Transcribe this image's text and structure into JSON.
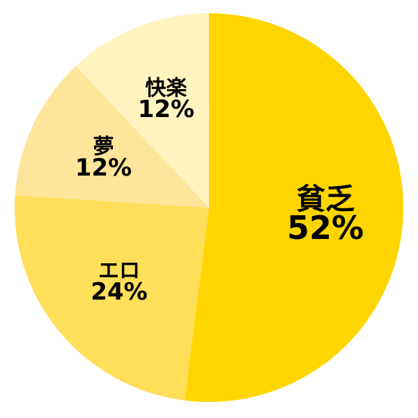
{
  "page": {
    "background_color": "#ffffff"
  },
  "chart_data": {
    "type": "pie",
    "title": "",
    "legend_position": "none",
    "labels_position": "inside",
    "start_angle_deg": 0,
    "direction": "clockwise",
    "text_color": "#000000",
    "total": 100,
    "slices": [
      {
        "label": "貧乏",
        "value": 52,
        "pct_label": "52%",
        "color": "#ffd500",
        "name_font_px": 42,
        "pct_font_px": 46
      },
      {
        "label": "エロ",
        "value": 24,
        "pct_label": "24%",
        "color": "#ffde59",
        "name_font_px": 30,
        "pct_font_px": 34
      },
      {
        "label": "夢",
        "value": 12,
        "pct_label": "12%",
        "color": "#ffe59a",
        "name_font_px": 30,
        "pct_font_px": 34
      },
      {
        "label": "快楽",
        "value": 12,
        "pct_label": "12%",
        "color": "#fff3bf",
        "name_font_px": 30,
        "pct_font_px": 34
      }
    ]
  }
}
